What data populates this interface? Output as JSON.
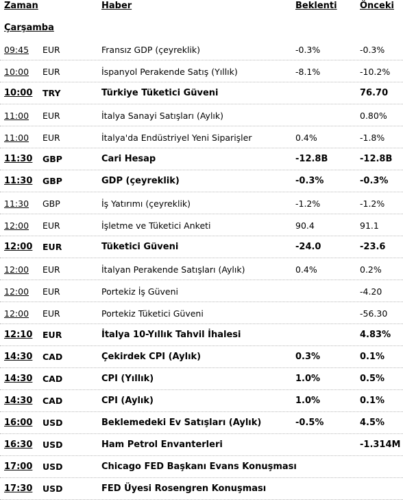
{
  "headers": {
    "zaman": "Zaman",
    "haber": "Haber",
    "beklenti": "Beklenti",
    "onceki": "Önceki"
  },
  "section_title": "Çarşamba",
  "rows": [
    {
      "time": "09:45",
      "currency": "EUR",
      "news": "Fransız GDP (çeyreklik)",
      "expected": "-0.3%",
      "previous": "-0.3%",
      "bold": false
    },
    {
      "time": "10:00",
      "currency": "EUR",
      "news": "İspanyol Perakende Satış (Yıllık)",
      "expected": "-8.1%",
      "previous": "-10.2%",
      "bold": false
    },
    {
      "time": "10:00",
      "currency": "TRY",
      "news": "Türkiye Tüketici Güveni",
      "expected": "",
      "previous": "76.70",
      "bold": true
    },
    {
      "time": "11:00",
      "currency": "EUR",
      "news": "İtalya Sanayi Satışları (Aylık)",
      "expected": "",
      "previous": "0.80%",
      "bold": false
    },
    {
      "time": "11:00",
      "currency": "EUR",
      "news": "İtalya'da Endüstriyel Yeni Siparişler",
      "expected": "0.4%",
      "previous": "-1.8%",
      "bold": false
    },
    {
      "time": "11:30",
      "currency": "GBP",
      "news": "Cari Hesap",
      "expected": "-12.8B",
      "previous": "-12.8B",
      "bold": true
    },
    {
      "time": "11:30",
      "currency": "GBP",
      "news": "GDP (çeyreklik)",
      "expected": "-0.3%",
      "previous": "-0.3%",
      "bold": true
    },
    {
      "time": "11:30",
      "currency": "GBP",
      "news": "İş Yatırımı (çeyreklik)",
      "expected": "-1.2%",
      "previous": "-1.2%",
      "bold": false
    },
    {
      "time": "12:00",
      "currency": "EUR",
      "news": "İşletme ve Tüketici Anketi",
      "expected": "90.4",
      "previous": "91.1",
      "bold": false
    },
    {
      "time": "12:00",
      "currency": "EUR",
      "news": "Tüketici Güveni",
      "expected": "-24.0",
      "previous": "-23.6",
      "bold": true
    },
    {
      "time": "12:00",
      "currency": "EUR",
      "news": "İtalyan Perakende Satışları (Aylık)",
      "expected": "0.4%",
      "previous": "0.2%",
      "bold": false
    },
    {
      "time": "12:00",
      "currency": "EUR",
      "news": "Portekiz İş Güveni",
      "expected": "",
      "previous": "-4.20",
      "bold": false
    },
    {
      "time": "12:00",
      "currency": "EUR",
      "news": "Portekiz Tüketici Güveni",
      "expected": "",
      "previous": "-56.30",
      "bold": false
    },
    {
      "time": "12:10",
      "currency": "EUR",
      "news": "İtalya 10-Yıllık Tahvil İhalesi",
      "expected": "",
      "previous": "4.83%",
      "bold": true
    },
    {
      "time": "14:30",
      "currency": "CAD",
      "news": "Çekirdek CPI (Aylık)",
      "expected": "0.3%",
      "previous": "0.1%",
      "bold": true
    },
    {
      "time": "14:30",
      "currency": "CAD",
      "news": "CPI (Yıllık)",
      "expected": "1.0%",
      "previous": "0.5%",
      "bold": true
    },
    {
      "time": "14:30",
      "currency": "CAD",
      "news": "CPI (Aylık)",
      "expected": "1.0%",
      "previous": "0.1%",
      "bold": true
    },
    {
      "time": "16:00",
      "currency": "USD",
      "news": "Beklemedeki Ev Satışları (Aylık)",
      "expected": " -0.5%",
      "previous": "4.5%",
      "bold": true
    },
    {
      "time": "16:30",
      "currency": "USD",
      "news": "Ham Petrol Envanterleri",
      "expected": "",
      "previous": "-1.314M",
      "bold": true
    },
    {
      "time": "17:00",
      "currency": "USD",
      "news": "Chicago FED Başkanı Evans Konuşması",
      "expected": "",
      "previous": "",
      "bold": true
    },
    {
      "time": "17:30",
      "currency": "USD",
      "news": "FED Üyesi Rosengren Konuşması",
      "expected": "",
      "previous": "",
      "bold": true
    }
  ]
}
